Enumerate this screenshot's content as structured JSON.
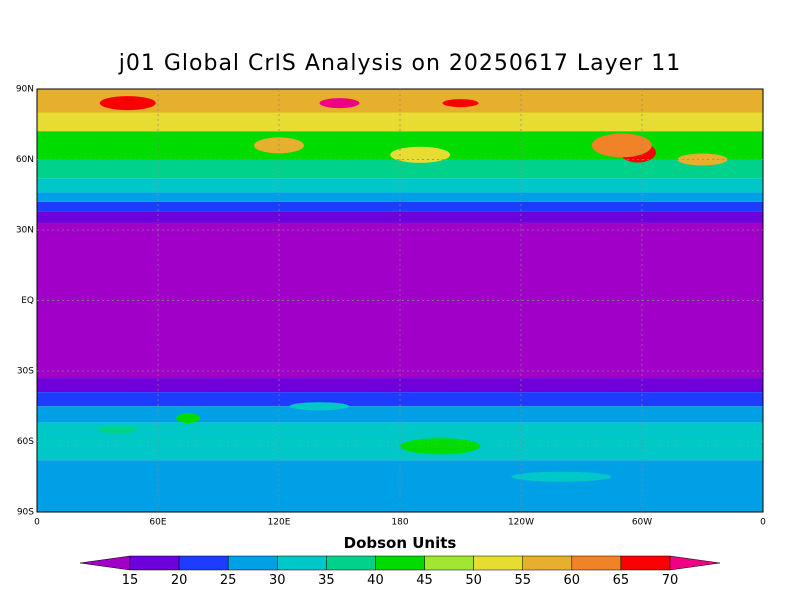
{
  "title": "j01 Global CrIS Analysis on 20250617 Layer 11",
  "lat_labels": [
    "90N",
    "60N",
    "30N",
    "EQ",
    "30S",
    "60S",
    "90S"
  ],
  "lon_labels": [
    "0",
    "60E",
    "120E",
    "180",
    "120W",
    "60W",
    "0"
  ],
  "colorbar": {
    "title": "Dobson Units",
    "ticks": [
      15,
      20,
      25,
      30,
      35,
      40,
      45,
      50,
      55,
      60,
      65,
      70
    ],
    "colors": [
      "#a000c8",
      "#6e00dc",
      "#1e3cff",
      "#00a0e6",
      "#00c8c8",
      "#00d28c",
      "#00dc00",
      "#a0e632",
      "#e6dc32",
      "#e6af2d",
      "#f08228",
      "#fa0000",
      "#f00082"
    ]
  }
}
